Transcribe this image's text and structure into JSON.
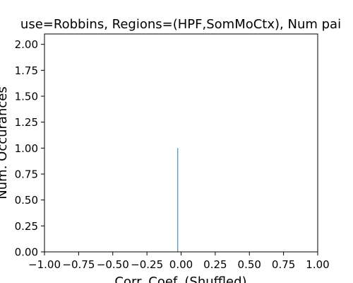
{
  "chart_data": {
    "type": "bar",
    "title": "use=Robbins, Regions=(HPF,SomMoCtx), Num pai",
    "xlabel": "Corr. Coef. (Shuffled)",
    "ylabel": "Num. Occurances",
    "xlim": [
      -1.0,
      1.0
    ],
    "ylim": [
      0.0,
      2.1
    ],
    "x_ticks": [
      "−1.00",
      "−0.75",
      "−0.50",
      "−0.25",
      "0.00",
      "0.25",
      "0.50",
      "0.75",
      "1.00"
    ],
    "x_tick_values": [
      -1.0,
      -0.75,
      -0.5,
      -0.25,
      0.0,
      0.25,
      0.5,
      0.75,
      1.0
    ],
    "y_ticks": [
      "0.00",
      "0.25",
      "0.50",
      "0.75",
      "1.00",
      "1.25",
      "1.50",
      "1.75",
      "2.00"
    ],
    "y_tick_values": [
      0.0,
      0.25,
      0.5,
      0.75,
      1.0,
      1.25,
      1.5,
      1.75,
      2.0
    ],
    "bars": [
      {
        "x_start": -0.027,
        "x_end": -0.024,
        "value": 1
      }
    ],
    "bar_color": "#1f77b4",
    "grid": false,
    "legend": "none"
  }
}
